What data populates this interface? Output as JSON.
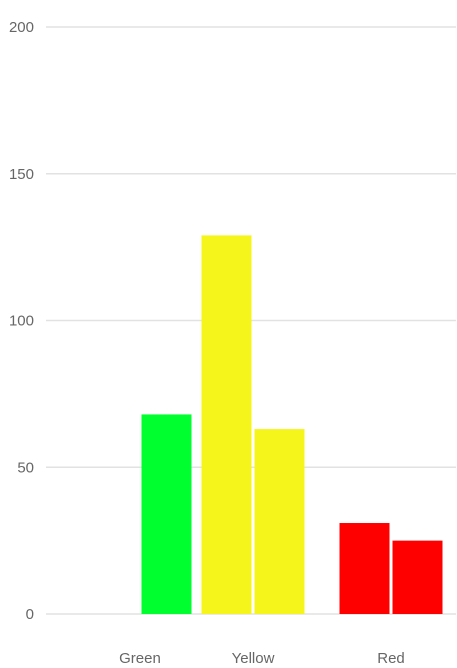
{
  "chart_data": {
    "type": "bar",
    "title": "",
    "xlabel": "",
    "ylabel": "",
    "ylim": [
      0,
      200
    ],
    "yticks": [
      0,
      50,
      100,
      150,
      200
    ],
    "grid": true,
    "legend": "none",
    "categories": [
      "Green",
      "Yellow",
      "Red"
    ],
    "series": [
      {
        "values": [
          null,
          129,
          31
        ]
      },
      {
        "values": [
          68,
          63,
          25
        ]
      }
    ],
    "colors": {
      "Green": "#00ff2e",
      "Yellow": "#f5f51b",
      "Red": "#ff0000"
    }
  }
}
